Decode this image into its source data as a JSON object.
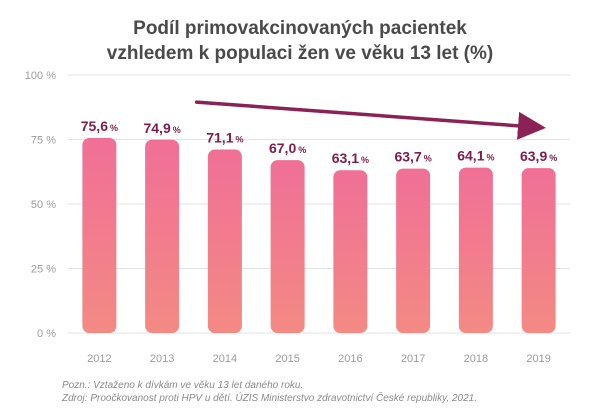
{
  "header": {
    "title_line1": "Podíl primovakcinovaných pacientek",
    "title_line2": "vzhledem k populaci žen ve věku 13 let (%)"
  },
  "notes": {
    "note": "Pozn.: Vztaženo k dívkám ve věku 13 let daného roku.",
    "source": "Zdroj: Proočkovanost proti HPV u dětí. ÚZIS Ministerstvo zdravotnictví České republiky, 2021."
  },
  "chart_data": {
    "type": "bar",
    "title": "Podíl primovakcinovaných pacientek vzhledem k populaci žen ve věku 13 let (%)",
    "categories": [
      "2012",
      "2013",
      "2014",
      "2015",
      "2016",
      "2017",
      "2018",
      "2019"
    ],
    "values": [
      75.6,
      74.9,
      71.1,
      67.0,
      63.1,
      63.7,
      64.1,
      63.9
    ],
    "value_labels": [
      "75,6",
      "74,9",
      "71,1",
      "67,0",
      "63,1",
      "63,7",
      "64,1",
      "63,9"
    ],
    "value_unit": "%",
    "ylim": [
      0,
      100
    ],
    "yticks": [
      0,
      25,
      50,
      75,
      100
    ],
    "ytick_labels": [
      "0 %",
      "25 %",
      "50 %",
      "75 %",
      "100 %"
    ],
    "xlabel": "",
    "ylabel": "",
    "grid": true,
    "legend": "none",
    "trend_arrow": "decreasing",
    "colors": {
      "bar_top": "#f06f97",
      "bar_bottom": "#f38a84",
      "label": "#7b1d4d",
      "arrow": "#8b2256",
      "grid": "#e3e3e3",
      "axis_text": "#9b9b9b",
      "title": "#4a4a4a"
    }
  }
}
